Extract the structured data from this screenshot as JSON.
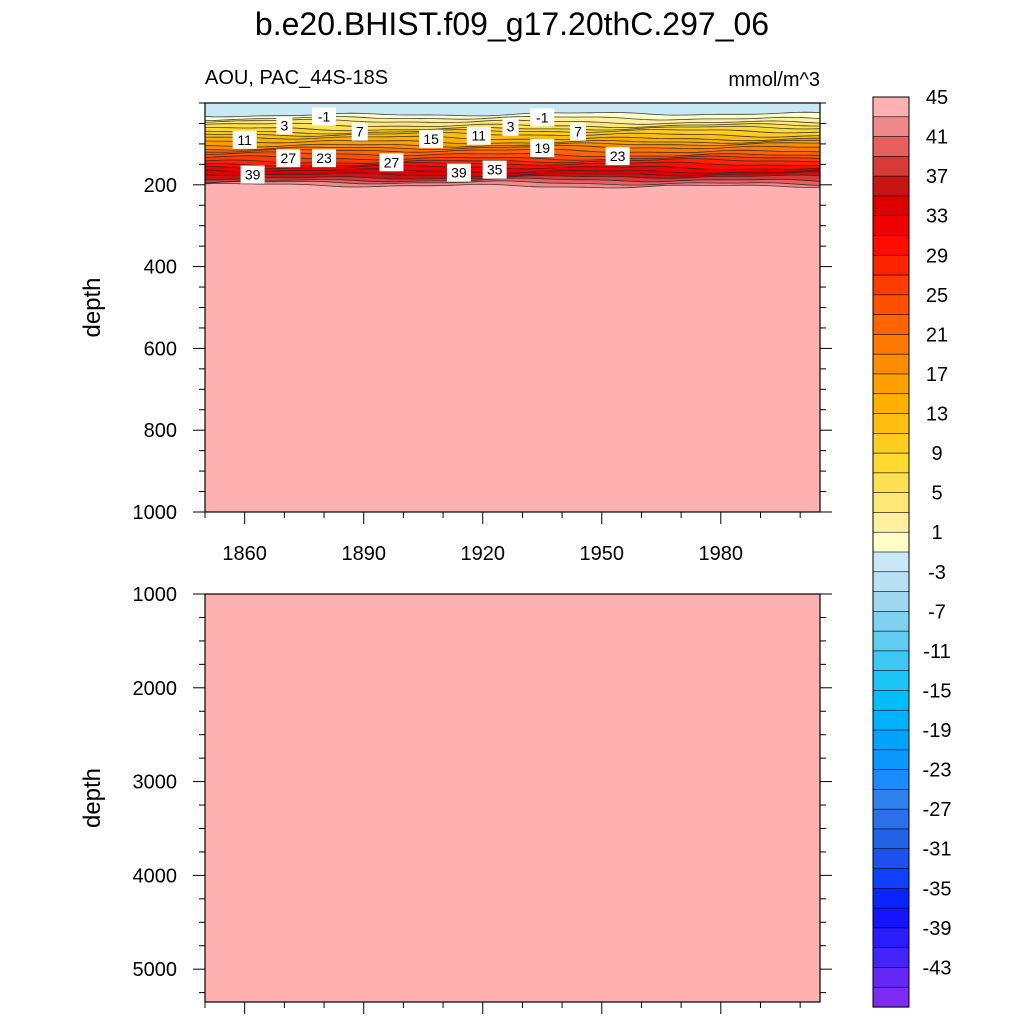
{
  "chart_data": {
    "type": "heatmap",
    "title": "b.e20.BHIST.f09_g17.20thC.297_06",
    "left_label": "AOU, PAC_44S-18S",
    "right_label": "mmol/m^3",
    "panels": [
      {
        "name": "upper",
        "ylabel": "depth",
        "ylim": [
          1000,
          0
        ],
        "xlim": [
          1850,
          2005
        ],
        "y_ticks": [
          200,
          400,
          600,
          800,
          1000
        ],
        "x_ticks": [
          1860,
          1890,
          1920,
          1950,
          1980
        ],
        "deep_value": 46,
        "contour_labels": [
          {
            "text": "-1",
            "x": 1880,
            "depth": 33
          },
          {
            "text": "-1",
            "x": 1935,
            "depth": 35
          },
          {
            "text": "3",
            "x": 1870,
            "depth": 55
          },
          {
            "text": "3",
            "x": 1927,
            "depth": 58
          },
          {
            "text": "7",
            "x": 1889,
            "depth": 70
          },
          {
            "text": "7",
            "x": 1944,
            "depth": 70
          },
          {
            "text": "11",
            "x": 1860,
            "depth": 90
          },
          {
            "text": "11",
            "x": 1919,
            "depth": 80
          },
          {
            "text": "15",
            "x": 1907,
            "depth": 88
          },
          {
            "text": "19",
            "x": 1935,
            "depth": 110
          },
          {
            "text": "23",
            "x": 1880,
            "depth": 135
          },
          {
            "text": "23",
            "x": 1954,
            "depth": 130
          },
          {
            "text": "27",
            "x": 1871,
            "depth": 135
          },
          {
            "text": "27",
            "x": 1897,
            "depth": 145
          },
          {
            "text": "35",
            "x": 1923,
            "depth": 163
          },
          {
            "text": "39",
            "x": 1862,
            "depth": 175
          },
          {
            "text": "39",
            "x": 1914,
            "depth": 170
          }
        ]
      },
      {
        "name": "lower",
        "ylabel": "depth",
        "ylim": [
          5350,
          1000
        ],
        "xlim": [
          1850,
          2005
        ],
        "y_ticks": [
          1000,
          2000,
          3000,
          4000,
          5000
        ],
        "x_ticks": [
          1860,
          1890,
          1920,
          1950,
          1980
        ],
        "deep_value": 46
      }
    ],
    "colorbar": {
      "levels": [
        -45,
        -43,
        -41,
        -39,
        -37,
        -35,
        -33,
        -31,
        -29,
        -27,
        -25,
        -23,
        -21,
        -19,
        -17,
        -15,
        -13,
        -11,
        -9,
        -7,
        -5,
        -3,
        -1,
        1,
        3,
        5,
        7,
        9,
        11,
        13,
        15,
        17,
        19,
        21,
        23,
        25,
        27,
        29,
        31,
        33,
        35,
        37,
        39,
        41,
        43,
        45
      ],
      "labels": [
        "-43",
        "-39",
        "-35",
        "-31",
        "-27",
        "-23",
        "-19",
        "-15",
        "-11",
        "-7",
        "-3",
        "1",
        "5",
        "9",
        "13",
        "17",
        "21",
        "25",
        "29",
        "33",
        "37",
        "41",
        "45"
      ],
      "colors": [
        "#7b2cf0",
        "#6328f5",
        "#4424fa",
        "#2a1cff",
        "#1414ff",
        "#0a24ff",
        "#1040ff",
        "#1e50f0",
        "#2462e6",
        "#2a70e8",
        "#3080f0",
        "#1a8cff",
        "#0a98ff",
        "#00a4ff",
        "#00b2ff",
        "#00bef8",
        "#1cc6f6",
        "#40c8f4",
        "#60ccf2",
        "#80d0f0",
        "#a0d8f0",
        "#b8e2f4",
        "#c8e8f6",
        "#ffffc8",
        "#fff0a0",
        "#ffe878",
        "#ffe050",
        "#ffd830",
        "#ffcc20",
        "#ffbe10",
        "#ffb000",
        "#ffa000",
        "#ff8c00",
        "#ff7800",
        "#ff6400",
        "#ff5000",
        "#ff3c00",
        "#ff2400",
        "#ff0c00",
        "#f00000",
        "#dc0000",
        "#c81414",
        "#d83a3a",
        "#e66060",
        "#f08a8a",
        "#ffb0b0"
      ]
    }
  }
}
